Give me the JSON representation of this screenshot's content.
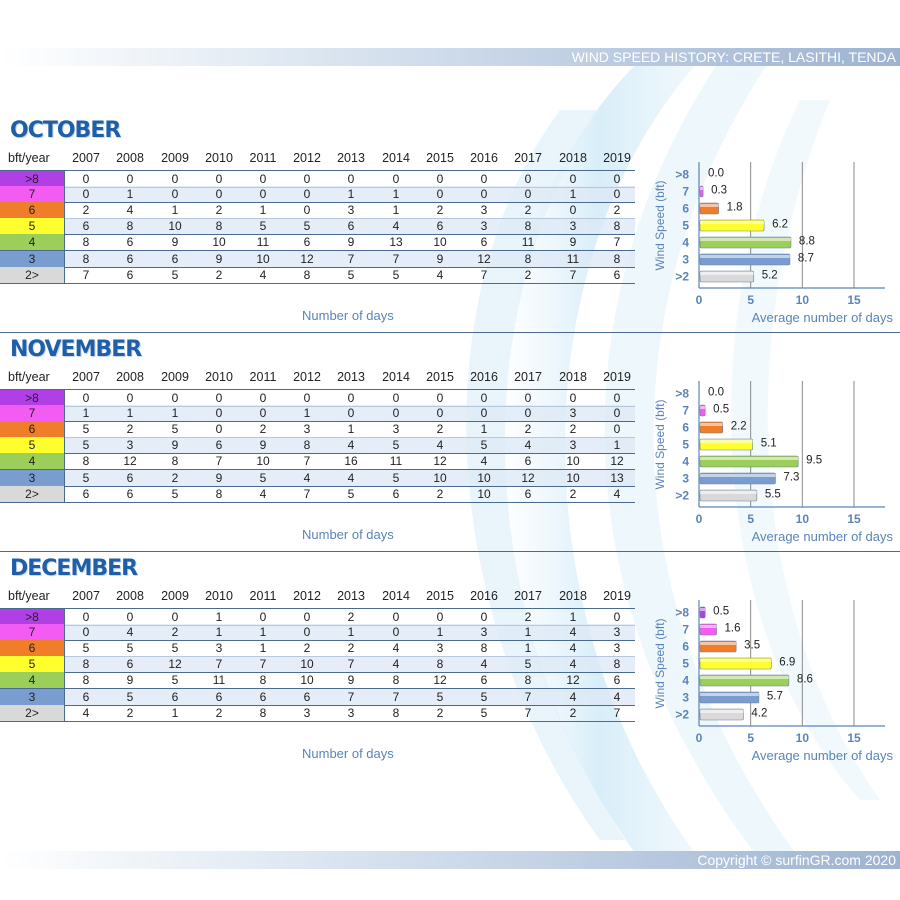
{
  "banner_title": "WIND SPEED HISTORY: CRETE, LASITHI, TENDA",
  "copyright": "Copyright © surfinGR.com 2020",
  "header_label": "bft/year",
  "years": [
    "2007",
    "2008",
    "2009",
    "2010",
    "2011",
    "2012",
    "2013",
    "2014",
    "2015",
    "2016",
    "2017",
    "2018",
    "2019"
  ],
  "row_labels": [
    ">8",
    "7",
    "6",
    "5",
    "4",
    "3",
    "2>"
  ],
  "row_colors": [
    "#b13fe6",
    "#f25cf2",
    "#f07d2a",
    "#ffff2e",
    "#9ccf5a",
    "#7a9dd0",
    "#d9d9d9"
  ],
  "table_caption": "Number of days",
  "chart_xlabel": "Average number of days",
  "chart_ylabel": "Wind Speed (bft)",
  "months": [
    {
      "name": "OCTOBER",
      "rows": [
        [
          "0",
          "0",
          "0",
          "0",
          "0",
          "0",
          "0",
          "0",
          "0",
          "0",
          "0",
          "0",
          "0"
        ],
        [
          "0",
          "1",
          "0",
          "0",
          "0",
          "0",
          "1",
          "1",
          "0",
          "0",
          "0",
          "1",
          "0"
        ],
        [
          "2",
          "4",
          "1",
          "2",
          "1",
          "0",
          "3",
          "1",
          "2",
          "3",
          "2",
          "0",
          "2"
        ],
        [
          "6",
          "8",
          "10",
          "8",
          "5",
          "5",
          "6",
          "4",
          "6",
          "3",
          "8",
          "3",
          "8"
        ],
        [
          "8",
          "6",
          "9",
          "10",
          "11",
          "6",
          "9",
          "13",
          "10",
          "6",
          "11",
          "9",
          "7"
        ],
        [
          "8",
          "6",
          "6",
          "9",
          "10",
          "12",
          "7",
          "7",
          "9",
          "12",
          "8",
          "11",
          "8"
        ],
        [
          "7",
          "6",
          "5",
          "2",
          "4",
          "8",
          "5",
          "5",
          "4",
          "7",
          "2",
          "7",
          "6"
        ]
      ]
    },
    {
      "name": "NOVEMBER",
      "rows": [
        [
          "0",
          "0",
          "0",
          "0",
          "0",
          "0",
          "0",
          "0",
          "0",
          "0",
          "0",
          "0",
          "0"
        ],
        [
          "1",
          "1",
          "1",
          "0",
          "0",
          "1",
          "0",
          "0",
          "0",
          "0",
          "0",
          "3",
          "0"
        ],
        [
          "5",
          "2",
          "5",
          "0",
          "2",
          "3",
          "1",
          "3",
          "2",
          "1",
          "2",
          "2",
          "0"
        ],
        [
          "5",
          "3",
          "9",
          "6",
          "9",
          "8",
          "4",
          "5",
          "4",
          "5",
          "4",
          "3",
          "1"
        ],
        [
          "8",
          "12",
          "8",
          "7",
          "10",
          "7",
          "16",
          "11",
          "12",
          "4",
          "6",
          "10",
          "12"
        ],
        [
          "5",
          "6",
          "2",
          "9",
          "5",
          "4",
          "4",
          "5",
          "10",
          "10",
          "12",
          "10",
          "13"
        ],
        [
          "6",
          "6",
          "5",
          "8",
          "4",
          "7",
          "5",
          "6",
          "2",
          "10",
          "6",
          "2",
          "4"
        ]
      ]
    },
    {
      "name": "DECEMBER",
      "rows": [
        [
          "0",
          "0",
          "0",
          "1",
          "0",
          "0",
          "2",
          "0",
          "0",
          "0",
          "2",
          "1",
          "0"
        ],
        [
          "0",
          "4",
          "2",
          "1",
          "1",
          "0",
          "1",
          "0",
          "1",
          "3",
          "1",
          "4",
          "3"
        ],
        [
          "5",
          "5",
          "5",
          "3",
          "1",
          "2",
          "2",
          "4",
          "3",
          "8",
          "1",
          "4",
          "3"
        ],
        [
          "8",
          "6",
          "12",
          "7",
          "7",
          "10",
          "7",
          "4",
          "8",
          "4",
          "5",
          "4",
          "8"
        ],
        [
          "8",
          "9",
          "5",
          "11",
          "8",
          "10",
          "9",
          "8",
          "12",
          "6",
          "8",
          "12",
          "6"
        ],
        [
          "6",
          "5",
          "6",
          "6",
          "6",
          "6",
          "7",
          "7",
          "5",
          "5",
          "7",
          "4",
          "4"
        ],
        [
          "4",
          "2",
          "1",
          "2",
          "8",
          "3",
          "3",
          "8",
          "2",
          "5",
          "7",
          "2",
          "7"
        ]
      ]
    }
  ],
  "chart_data": [
    {
      "type": "bar",
      "orientation": "horizontal",
      "categories": [
        ">8",
        "7",
        "6",
        "5",
        "4",
        "3",
        ">2"
      ],
      "values": [
        0.0,
        0.3,
        1.8,
        6.2,
        8.8,
        8.7,
        5.2
      ],
      "value_labels": [
        "0.0",
        "0.3",
        "1.8",
        "6.2",
        "8.8",
        "8.7",
        "5.2"
      ],
      "xticks": [
        "0",
        "5",
        "10",
        "15"
      ],
      "xlim": [
        0,
        18
      ],
      "xlabel": "Average number of days",
      "ylabel": "Wind Speed (bft)",
      "grid": "vertical"
    },
    {
      "type": "bar",
      "orientation": "horizontal",
      "categories": [
        ">8",
        "7",
        "6",
        "5",
        "4",
        "3",
        ">2"
      ],
      "values": [
        0.0,
        0.5,
        2.2,
        5.1,
        9.5,
        7.3,
        5.5
      ],
      "value_labels": [
        "0.0",
        "0.5",
        "2.2",
        "5.1",
        "9.5",
        "7.3",
        "5.5"
      ],
      "xticks": [
        "0",
        "5",
        "10",
        "15"
      ],
      "xlim": [
        0,
        18
      ],
      "xlabel": "Average number of days",
      "ylabel": "Wind Speed (bft)",
      "grid": "vertical"
    },
    {
      "type": "bar",
      "orientation": "horizontal",
      "categories": [
        ">8",
        "7",
        "6",
        "5",
        "4",
        "3",
        ">2"
      ],
      "values": [
        0.5,
        1.6,
        3.5,
        6.9,
        8.6,
        5.7,
        4.2
      ],
      "value_labels": [
        "0.5",
        "1.6",
        "3.5",
        "6.9",
        "8.6",
        "5.7",
        "4.2"
      ],
      "xticks": [
        "0",
        "5",
        "10",
        "15"
      ],
      "xlim": [
        0,
        18
      ],
      "xlabel": "Average number of days",
      "ylabel": "Wind Speed (bft)",
      "grid": "vertical"
    }
  ]
}
